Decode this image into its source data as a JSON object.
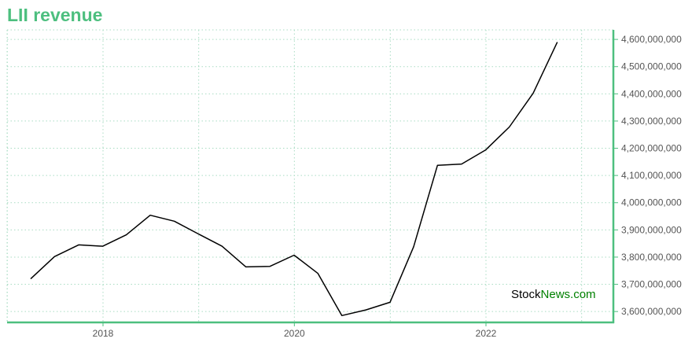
{
  "chart_data": {
    "type": "line",
    "title": "LII revenue",
    "xlabel": "",
    "ylabel": "",
    "x": [
      "2017-03-31",
      "2017-06-30",
      "2017-09-30",
      "2017-12-31",
      "2018-03-31",
      "2018-06-30",
      "2018-09-30",
      "2018-12-31",
      "2019-03-31",
      "2019-06-30",
      "2019-09-30",
      "2019-12-31",
      "2020-03-31",
      "2020-06-30",
      "2020-09-30",
      "2020-12-31",
      "2021-03-31",
      "2021-06-30",
      "2021-09-30",
      "2021-12-31",
      "2022-03-31",
      "2022-06-30",
      "2022-09-30"
    ],
    "series": [
      {
        "values": [
          3720000000,
          3802000000,
          3845000000,
          3840000000,
          3882000000,
          3954000000,
          3932000000,
          3885000000,
          3840000000,
          3764000000,
          3766000000,
          3807000000,
          3740000000,
          3585000000,
          3606000000,
          3634000000,
          3838000000,
          4137000000,
          4142000000,
          4194000000,
          4278000000,
          4402000000,
          4590000000
        ]
      }
    ],
    "xlim": [
      "2016-12-31",
      "2023-05-02"
    ],
    "ylim": [
      3560000000,
      4635000000
    ],
    "x_ticks": [
      "2018",
      "2020",
      "2022"
    ],
    "y_ticks": [
      "3,600,000,000",
      "3,700,000,000",
      "3,800,000,000",
      "3,900,000,000",
      "4,000,000,000",
      "4,100,000,000",
      "4,200,000,000",
      "4,300,000,000",
      "4,400,000,000",
      "4,500,000,000",
      "4,600,000,000"
    ],
    "grid": true,
    "y_axis_side": "right",
    "colors": {
      "line": "#000000",
      "axis": "#4dbf7f",
      "grid": "#a9dcc3",
      "title": "#4dbf7f"
    }
  },
  "watermark": {
    "part1": "Stock",
    "part2": "News.com",
    "color1": "#000000",
    "color2": "#008000"
  }
}
